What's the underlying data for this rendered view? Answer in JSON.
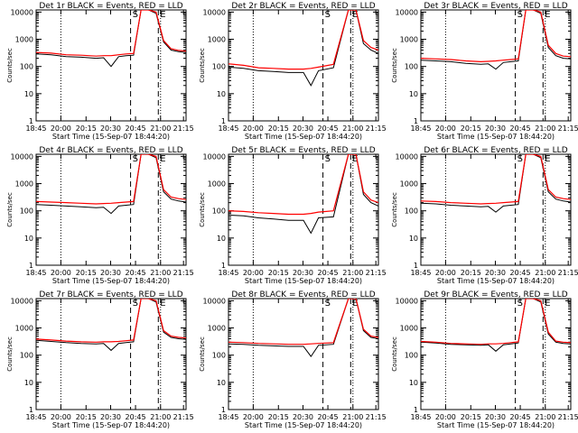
{
  "chart_data": [
    {
      "type": "line",
      "title": "Det 1r BLACK = Events, RED = LLD",
      "xlabel": "Start Time (15-Sep-07 18:44:20)",
      "ylabel": "Counts/sec",
      "x_tick_labels": [
        "18:45",
        "20:00",
        "20:15",
        "20:30",
        "20:45",
        "21:00",
        "21:15"
      ],
      "y_tick_labels": [
        "1",
        "10",
        "100",
        "1000",
        "10000"
      ],
      "ylim": [
        1,
        12000
      ],
      "yscale": "log",
      "markers": [
        "S",
        "E"
      ],
      "series": [
        {
          "name": "Events",
          "color": "#000000",
          "x": [
            0,
            10,
            20,
            30,
            40,
            45,
            50,
            55,
            60,
            65,
            70,
            75,
            80,
            85,
            90,
            95,
            100
          ],
          "values": [
            290,
            270,
            230,
            220,
            200,
            210,
            100,
            230,
            250,
            260,
            12000,
            12000,
            9000,
            800,
            400,
            350,
            330
          ]
        },
        {
          "name": "LLD",
          "color": "#ff0000",
          "x": [
            0,
            10,
            20,
            30,
            40,
            45,
            50,
            55,
            60,
            65,
            70,
            75,
            80,
            85,
            90,
            95,
            100
          ],
          "values": [
            330,
            310,
            270,
            260,
            240,
            250,
            250,
            270,
            290,
            300,
            12000,
            12000,
            10000,
            900,
            450,
            390,
            370
          ]
        }
      ]
    },
    {
      "type": "line",
      "title": "Det 2r BLACK = Events, RED = LLD",
      "xlabel": "Start Time (15-Sep-07 18:44:20)",
      "ylabel": "Counts/sec",
      "x_tick_labels": [
        "18:45",
        "20:00",
        "20:15",
        "20:30",
        "20:45",
        "21:00",
        "21:15"
      ],
      "y_tick_labels": [
        "1",
        "10",
        "100",
        "1000",
        "10000"
      ],
      "ylim": [
        1,
        12000
      ],
      "yscale": "log",
      "markers": [
        "S",
        "E"
      ],
      "series": [
        {
          "name": "Events",
          "color": "#000000",
          "x": [
            0,
            10,
            20,
            30,
            40,
            50,
            55,
            60,
            70,
            80,
            85,
            90,
            95,
            100
          ],
          "values": [
            95,
            85,
            70,
            65,
            60,
            60,
            20,
            70,
            90,
            12000,
            12000,
            700,
            400,
            300
          ]
        },
        {
          "name": "LLD",
          "color": "#ff0000",
          "x": [
            0,
            10,
            20,
            30,
            40,
            50,
            55,
            60,
            70,
            80,
            85,
            90,
            95,
            100
          ],
          "values": [
            125,
            110,
            90,
            85,
            80,
            80,
            85,
            95,
            120,
            12000,
            12000,
            900,
            500,
            400
          ]
        }
      ]
    },
    {
      "type": "line",
      "title": "Det 3r BLACK = Events, RED = LLD",
      "xlabel": "Start Time (15-Sep-07 18:44:20)",
      "ylabel": "Counts/sec",
      "x_tick_labels": [
        "18:45",
        "20:00",
        "20:15",
        "20:30",
        "20:45",
        "21:00",
        "21:15"
      ],
      "y_tick_labels": [
        "1",
        "10",
        "100",
        "1000",
        "10000"
      ],
      "ylim": [
        1,
        12000
      ],
      "yscale": "log",
      "markers": [
        "S",
        "E"
      ],
      "series": [
        {
          "name": "Events",
          "color": "#000000",
          "x": [
            0,
            10,
            20,
            30,
            40,
            45,
            50,
            55,
            60,
            65,
            70,
            75,
            80,
            85,
            90,
            95,
            100
          ],
          "values": [
            170,
            160,
            150,
            130,
            120,
            125,
            80,
            140,
            150,
            160,
            12000,
            12000,
            9000,
            500,
            250,
            200,
            190
          ]
        },
        {
          "name": "LLD",
          "color": "#ff0000",
          "x": [
            0,
            10,
            20,
            30,
            40,
            45,
            50,
            55,
            60,
            65,
            70,
            75,
            80,
            85,
            90,
            95,
            100
          ],
          "values": [
            200,
            190,
            180,
            160,
            150,
            155,
            160,
            170,
            180,
            190,
            12000,
            12000,
            10000,
            600,
            300,
            240,
            230
          ]
        }
      ]
    },
    {
      "type": "line",
      "title": "Det 4r BLACK = Events, RED = LLD",
      "xlabel": "Start Time (15-Sep-07 18:44:20)",
      "ylabel": "Counts/sec",
      "x_tick_labels": [
        "18:45",
        "20:00",
        "20:15",
        "20:30",
        "20:45",
        "21:00",
        "21:15"
      ],
      "y_tick_labels": [
        "1",
        "10",
        "100",
        "1000",
        "10000"
      ],
      "ylim": [
        1,
        12000
      ],
      "yscale": "log",
      "markers": [
        "S",
        "E"
      ],
      "series": [
        {
          "name": "Events",
          "color": "#000000",
          "x": [
            0,
            10,
            20,
            30,
            40,
            45,
            50,
            55,
            60,
            65,
            70,
            75,
            80,
            85,
            90,
            95,
            100
          ],
          "values": [
            170,
            160,
            150,
            140,
            130,
            135,
            80,
            150,
            160,
            170,
            12000,
            12000,
            9000,
            500,
            270,
            230,
            210
          ]
        },
        {
          "name": "LLD",
          "color": "#ff0000",
          "x": [
            0,
            10,
            20,
            30,
            40,
            45,
            50,
            55,
            60,
            65,
            70,
            75,
            80,
            85,
            90,
            95,
            100
          ],
          "values": [
            220,
            210,
            200,
            190,
            180,
            185,
            190,
            200,
            210,
            220,
            12000,
            12000,
            10000,
            600,
            320,
            280,
            260
          ]
        }
      ]
    },
    {
      "type": "line",
      "title": "Det 5r BLACK = Events, RED = LLD",
      "xlabel": "Start Time (15-Sep-07 18:44:20)",
      "ylabel": "Counts/sec",
      "x_tick_labels": [
        "18:45",
        "20:00",
        "20:15",
        "20:30",
        "20:45",
        "21:00",
        "21:15"
      ],
      "y_tick_labels": [
        "1",
        "10",
        "100",
        "1000",
        "10000"
      ],
      "ylim": [
        1,
        12000
      ],
      "yscale": "log",
      "markers": [
        "S",
        "E"
      ],
      "series": [
        {
          "name": "Events",
          "color": "#000000",
          "x": [
            0,
            10,
            20,
            30,
            40,
            50,
            55,
            60,
            70,
            80,
            85,
            90,
            95,
            100
          ],
          "values": [
            70,
            65,
            55,
            50,
            45,
            45,
            15,
            55,
            60,
            12000,
            12000,
            400,
            200,
            150
          ]
        },
        {
          "name": "LLD",
          "color": "#ff0000",
          "x": [
            0,
            10,
            20,
            30,
            40,
            50,
            55,
            60,
            70,
            80,
            85,
            90,
            95,
            100
          ],
          "values": [
            100,
            95,
            85,
            80,
            75,
            75,
            80,
            90,
            100,
            12000,
            12000,
            500,
            250,
            200
          ]
        }
      ]
    },
    {
      "type": "line",
      "title": "Det 6r BLACK = Events, RED = LLD",
      "xlabel": "Start Time (15-Sep-07 18:44:20)",
      "ylabel": "Counts/sec",
      "x_tick_labels": [
        "18:45",
        "20:00",
        "20:15",
        "20:30",
        "20:45",
        "21:00",
        "21:15"
      ],
      "y_tick_labels": [
        "1",
        "10",
        "100",
        "1000",
        "10000"
      ],
      "ylim": [
        1,
        12000
      ],
      "yscale": "log",
      "markers": [
        "S",
        "E"
      ],
      "series": [
        {
          "name": "Events",
          "color": "#000000",
          "x": [
            0,
            10,
            20,
            30,
            40,
            45,
            50,
            55,
            60,
            65,
            70,
            75,
            80,
            85,
            90,
            95,
            100
          ],
          "values": [
            190,
            180,
            160,
            150,
            140,
            145,
            90,
            150,
            160,
            170,
            12000,
            12000,
            9000,
            500,
            270,
            230,
            210
          ]
        },
        {
          "name": "LLD",
          "color": "#ff0000",
          "x": [
            0,
            10,
            20,
            30,
            40,
            45,
            50,
            55,
            60,
            65,
            70,
            75,
            80,
            85,
            90,
            95,
            100
          ],
          "values": [
            230,
            220,
            200,
            190,
            180,
            185,
            190,
            200,
            210,
            220,
            12000,
            12000,
            10000,
            600,
            320,
            280,
            260
          ]
        }
      ]
    },
    {
      "type": "line",
      "title": "Det 7r BLACK = Events, RED = LLD",
      "xlabel": "Start Time (15-Sep-07 18:44:20)",
      "ylabel": "Counts/sec",
      "x_tick_labels": [
        "18:45",
        "20:00",
        "20:15",
        "20:30",
        "20:45",
        "21:00",
        "21:15"
      ],
      "y_tick_labels": [
        "1",
        "10",
        "100",
        "1000",
        "10000"
      ],
      "ylim": [
        1,
        12000
      ],
      "yscale": "log",
      "markers": [
        "S",
        "E"
      ],
      "series": [
        {
          "name": "Events",
          "color": "#000000",
          "x": [
            0,
            10,
            20,
            30,
            40,
            45,
            50,
            55,
            60,
            65,
            70,
            75,
            80,
            85,
            90,
            95,
            100
          ],
          "values": [
            350,
            320,
            290,
            270,
            260,
            270,
            150,
            270,
            290,
            310,
            12000,
            12000,
            9000,
            700,
            450,
            400,
            380
          ]
        },
        {
          "name": "LLD",
          "color": "#ff0000",
          "x": [
            0,
            10,
            20,
            30,
            40,
            45,
            50,
            55,
            60,
            65,
            70,
            75,
            80,
            85,
            90,
            95,
            100
          ],
          "values": [
            390,
            360,
            330,
            310,
            300,
            310,
            310,
            320,
            340,
            360,
            12000,
            12000,
            10000,
            800,
            500,
            450,
            430
          ]
        }
      ]
    },
    {
      "type": "line",
      "title": "Det 8r BLACK = Events, RED = LLD",
      "xlabel": "Start Time (15-Sep-07 18:44:20)",
      "ylabel": "Counts/sec",
      "x_tick_labels": [
        "18:45",
        "20:00",
        "20:15",
        "20:30",
        "20:45",
        "21:00",
        "21:15"
      ],
      "y_tick_labels": [
        "1",
        "10",
        "100",
        "1000",
        "10000"
      ],
      "ylim": [
        1,
        12000
      ],
      "yscale": "log",
      "markers": [
        "S",
        "E"
      ],
      "series": [
        {
          "name": "Events",
          "color": "#000000",
          "x": [
            0,
            10,
            20,
            30,
            40,
            50,
            55,
            60,
            70,
            80,
            85,
            90,
            95,
            100
          ],
          "values": [
            260,
            250,
            230,
            220,
            210,
            210,
            90,
            230,
            250,
            12000,
            12000,
            800,
            450,
            400
          ]
        },
        {
          "name": "LLD",
          "color": "#ff0000",
          "x": [
            0,
            10,
            20,
            30,
            40,
            50,
            55,
            60,
            70,
            80,
            85,
            90,
            95,
            100
          ],
          "values": [
            300,
            290,
            270,
            260,
            250,
            250,
            260,
            270,
            290,
            12000,
            12000,
            900,
            500,
            450
          ]
        }
      ]
    },
    {
      "type": "line",
      "title": "Det 9r BLACK = Events, RED = LLD",
      "xlabel": "Start Time (15-Sep-07 18:44:20)",
      "ylabel": "Counts/sec",
      "x_tick_labels": [
        "18:45",
        "20:00",
        "20:15",
        "20:30",
        "20:45",
        "21:00",
        "21:15"
      ],
      "y_tick_labels": [
        "1",
        "10",
        "100",
        "1000",
        "10000"
      ],
      "ylim": [
        1,
        12000
      ],
      "yscale": "log",
      "markers": [
        "S",
        "E"
      ],
      "series": [
        {
          "name": "Events",
          "color": "#000000",
          "x": [
            0,
            10,
            20,
            30,
            40,
            45,
            50,
            55,
            60,
            65,
            70,
            75,
            80,
            85,
            90,
            95,
            100
          ],
          "values": [
            300,
            280,
            250,
            240,
            230,
            240,
            140,
            240,
            260,
            280,
            12000,
            12000,
            9000,
            600,
            300,
            270,
            260
          ]
        },
        {
          "name": "LLD",
          "color": "#ff0000",
          "x": [
            0,
            10,
            20,
            30,
            40,
            45,
            50,
            55,
            60,
            65,
            70,
            75,
            80,
            85,
            90,
            95,
            100
          ],
          "values": [
            320,
            300,
            270,
            260,
            250,
            260,
            260,
            270,
            290,
            310,
            12000,
            12000,
            10000,
            700,
            330,
            300,
            290
          ]
        }
      ]
    }
  ]
}
